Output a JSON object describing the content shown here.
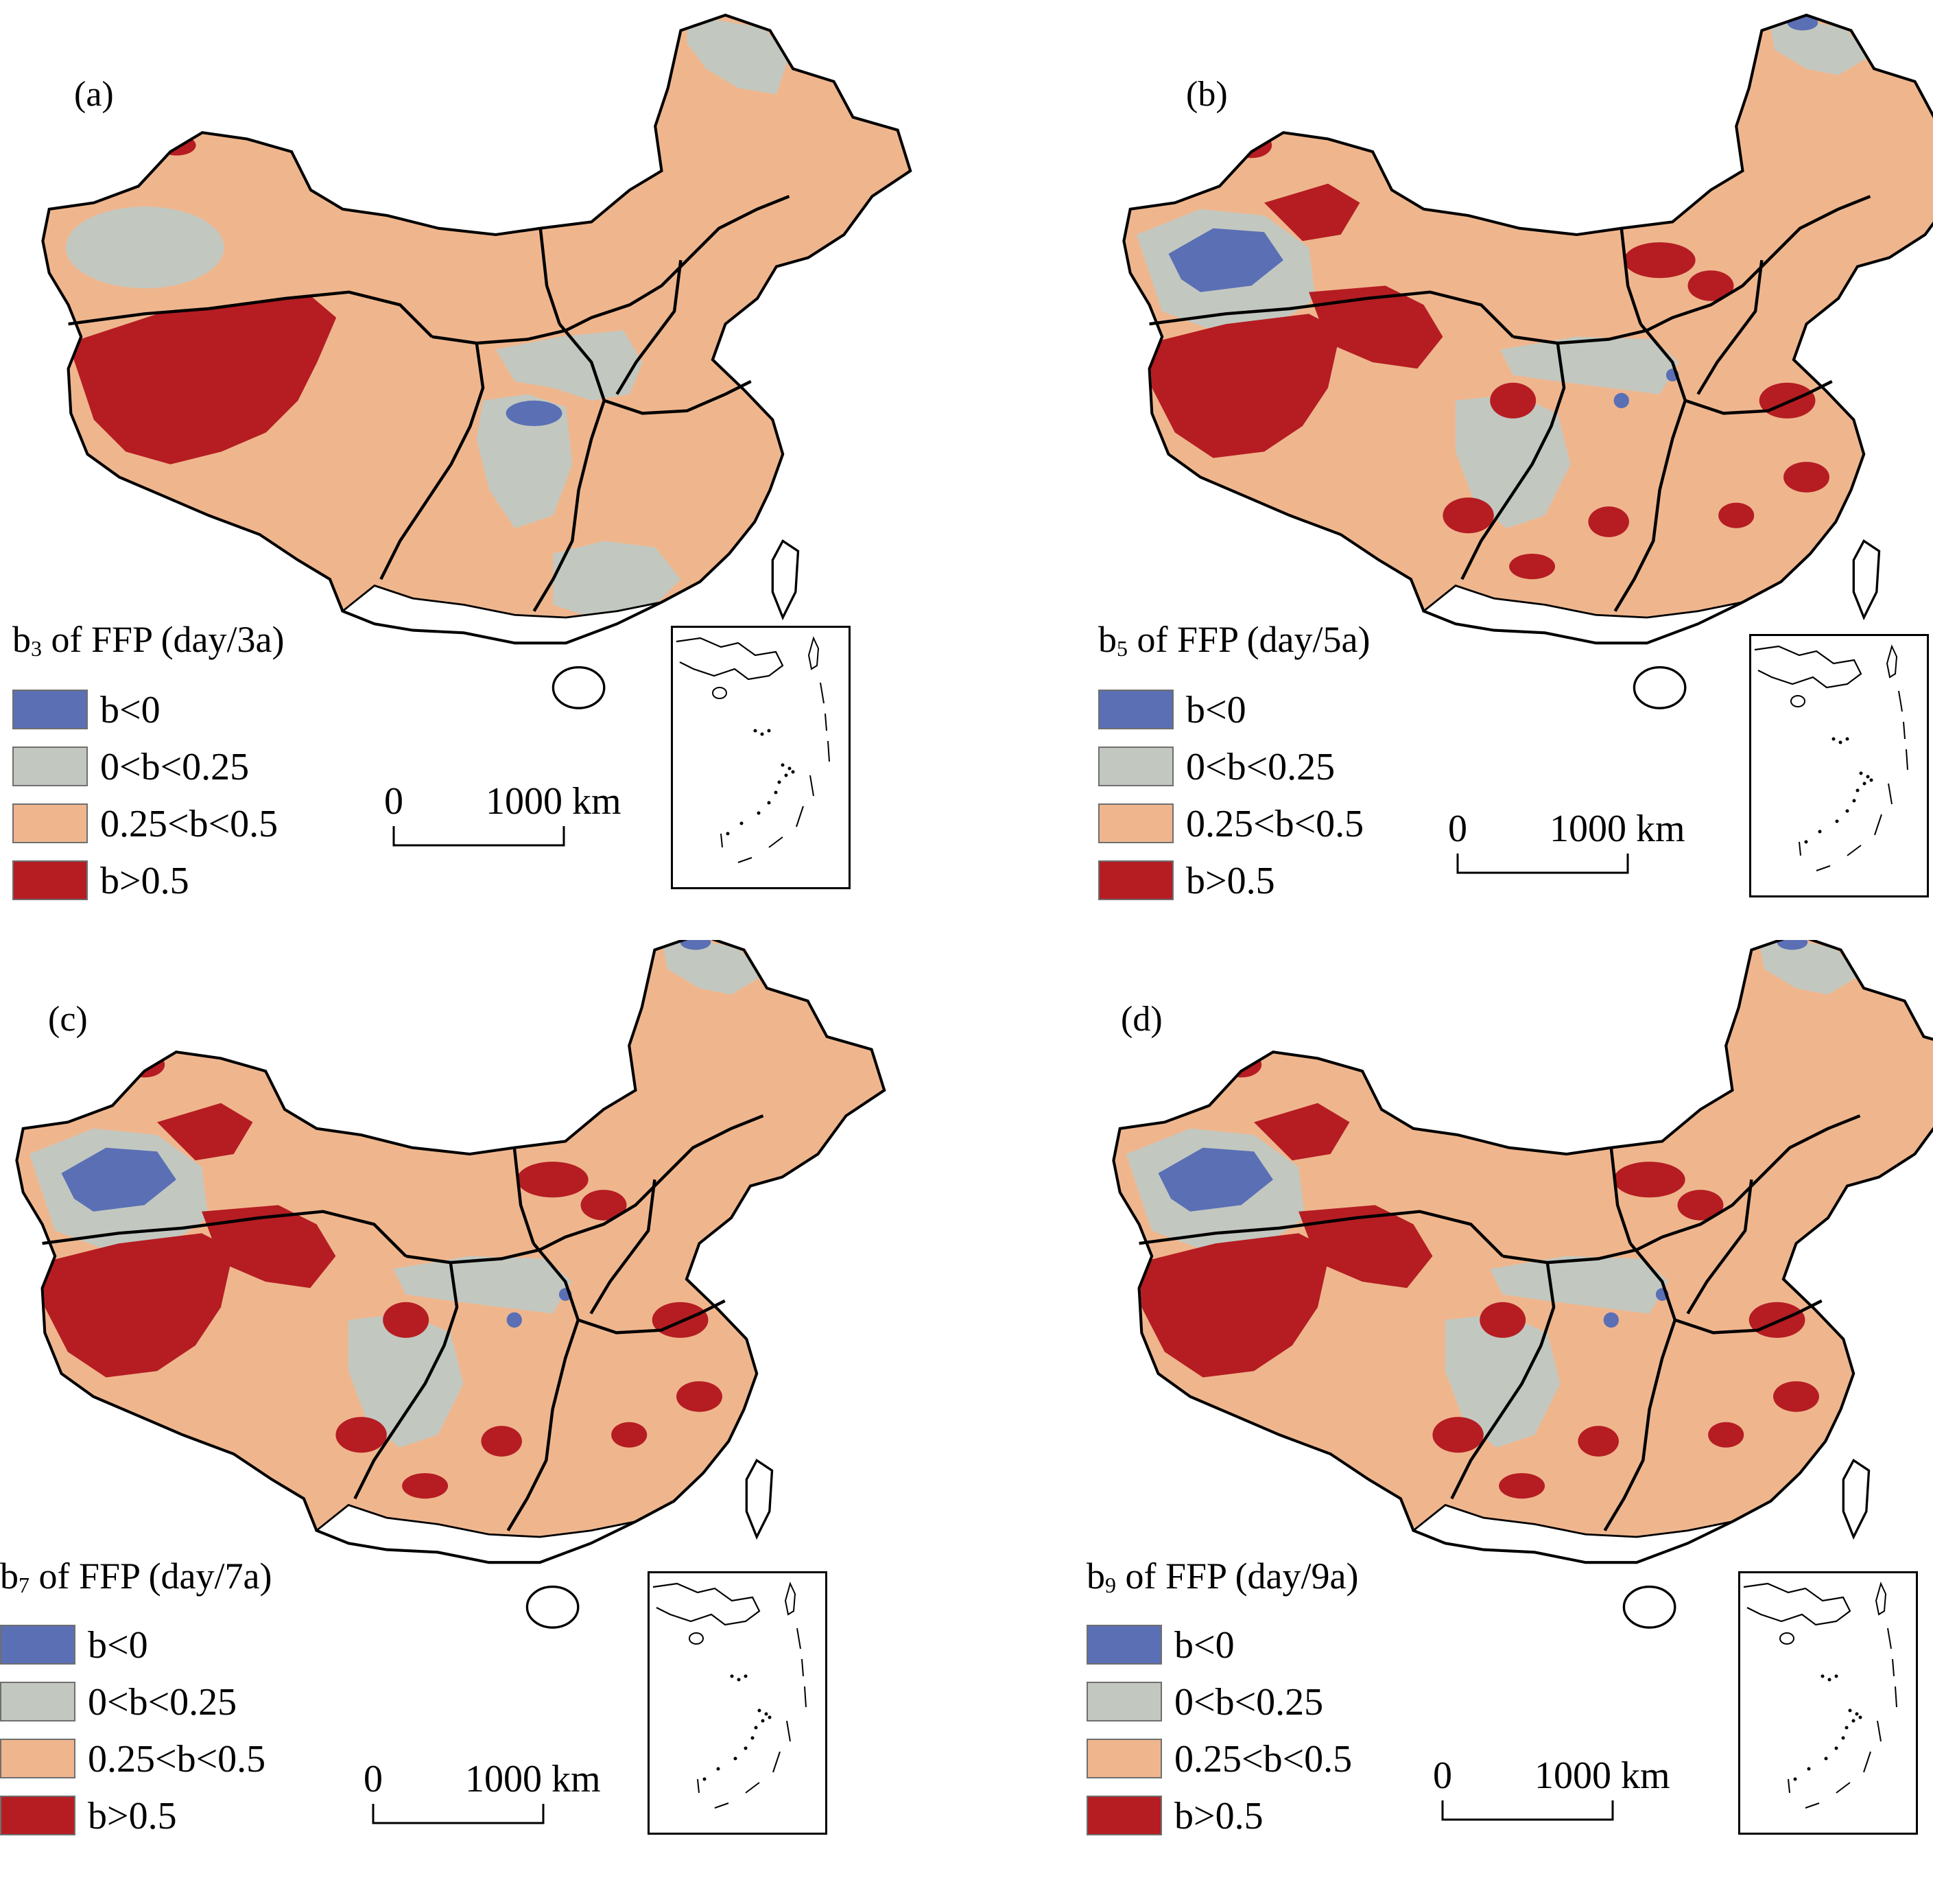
{
  "colors": {
    "b_neg": "#5b6fb5",
    "b_low": "#c2c8c0",
    "b_mid": "#efb68e",
    "b_high": "#b51d22",
    "outline": "#000000"
  },
  "legend_items": [
    {
      "label": "b<0",
      "color": "#5b6fb5"
    },
    {
      "label": "0<b<0.25",
      "color": "#c2c8c0"
    },
    {
      "label": "0.25<b<0.5",
      "color": "#efb68e"
    },
    {
      "label": "b>0.5",
      "color": "#b51d22"
    }
  ],
  "scale_bar": {
    "start": "0",
    "end": "1000 km"
  },
  "panels": [
    {
      "label": "(a)",
      "symbol": "b",
      "subscript": "3",
      "title_rest": " of  FFP (day/3a)"
    },
    {
      "label": "(b)",
      "symbol": "b",
      "subscript": "5",
      "title_rest": " of  FFP (day/5a)"
    },
    {
      "label": "(c)",
      "symbol": "b",
      "subscript": "7",
      "title_rest": " of  FFP (day/7a)"
    },
    {
      "label": "(d)",
      "symbol": "b",
      "subscript": "9",
      "title_rest": " of  FFP (day/9a)"
    }
  ]
}
